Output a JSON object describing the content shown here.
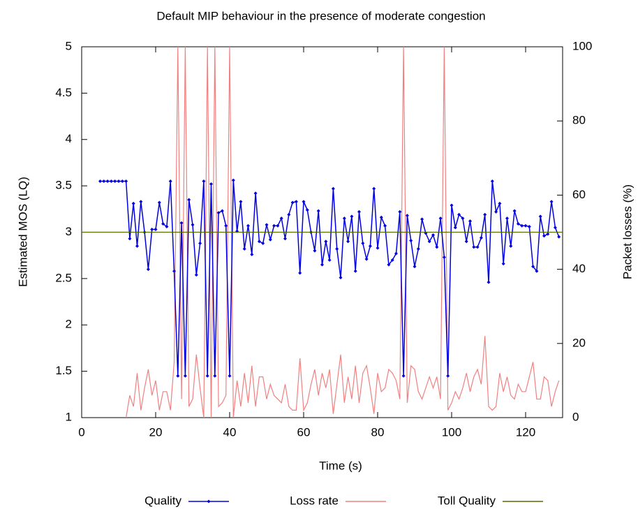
{
  "chart_data": {
    "type": "line",
    "title": "Default MIP behaviour in the presence of moderate congestion",
    "x_label": "Time (s)",
    "y_label": "Estimated MOS (LQ)",
    "y2_label": "Packet losses (%)",
    "xlim": [
      0,
      130
    ],
    "xticks": [
      0,
      20,
      40,
      60,
      80,
      100,
      120
    ],
    "ylim": [
      1,
      5
    ],
    "yticks": [
      1,
      1.5,
      2,
      2.5,
      3,
      3.5,
      4,
      4.5,
      5
    ],
    "y2lim": [
      0,
      100
    ],
    "y2ticks": [
      0,
      20,
      40,
      60,
      80,
      100
    ],
    "legend": "bottom",
    "series": [
      {
        "name": "Quality",
        "color": "#0000e0",
        "marker": "diamond",
        "x": [
          5,
          6,
          7,
          8,
          9,
          10,
          11,
          12,
          13,
          14,
          15,
          16,
          17,
          18,
          19,
          20,
          21,
          22,
          23,
          24,
          25,
          26,
          27,
          28,
          29,
          30,
          31,
          32,
          33,
          34,
          35,
          36,
          37,
          38,
          39,
          40,
          41,
          42,
          43,
          44,
          45,
          46,
          47,
          48,
          49,
          50,
          51,
          52,
          53,
          54,
          55,
          56,
          57,
          58,
          59,
          60,
          61,
          62,
          63,
          64,
          65,
          66,
          67,
          68,
          69,
          70,
          71,
          72,
          73,
          74,
          75,
          76,
          77,
          78,
          79,
          80,
          81,
          82,
          83,
          84,
          85,
          86,
          87,
          88,
          89,
          90,
          91,
          92,
          93,
          94,
          95,
          96,
          97,
          98,
          99,
          100,
          101,
          102,
          103,
          104,
          105,
          106,
          107,
          108,
          109,
          110,
          111,
          112,
          113,
          114,
          115,
          116,
          117,
          118,
          119,
          120,
          121,
          122,
          123,
          124,
          125,
          126,
          127,
          128,
          129
        ],
        "values": [
          3.55,
          3.55,
          3.55,
          3.55,
          3.55,
          3.55,
          3.55,
          3.55,
          2.93,
          3.31,
          2.85,
          3.33,
          3.0,
          2.6,
          3.03,
          3.03,
          3.32,
          3.09,
          3.06,
          3.55,
          2.58,
          1.45,
          3.1,
          1.45,
          3.35,
          3.08,
          2.54,
          2.88,
          3.55,
          1.45,
          3.52,
          1.45,
          3.21,
          3.23,
          3.07,
          1.45,
          3.56,
          3.01,
          3.33,
          2.82,
          3.07,
          2.76,
          3.42,
          2.9,
          2.88,
          3.08,
          2.92,
          3.07,
          3.07,
          3.15,
          2.93,
          3.19,
          3.32,
          3.33,
          2.56,
          3.33,
          3.24,
          3.0,
          2.8,
          3.23,
          2.65,
          2.9,
          2.7,
          3.47,
          2.82,
          2.51,
          3.15,
          2.9,
          3.17,
          2.58,
          3.22,
          2.88,
          2.71,
          2.85,
          3.47,
          2.83,
          3.16,
          3.07,
          2.65,
          2.7,
          2.77,
          3.22,
          1.45,
          3.18,
          2.91,
          2.63,
          2.82,
          3.14,
          2.99,
          2.9,
          2.97,
          2.84,
          3.15,
          2.73,
          1.45,
          3.29,
          3.05,
          3.19,
          3.15,
          2.9,
          3.12,
          2.84,
          2.84,
          2.94,
          3.19,
          2.46,
          3.55,
          3.22,
          3.31,
          2.66,
          3.15,
          2.85,
          3.23,
          3.09,
          3.07,
          3.07,
          3.06,
          2.63,
          2.58,
          3.17,
          2.96,
          2.98,
          3.33,
          3.05,
          2.95
        ]
      },
      {
        "name": "Loss rate",
        "color": "#f08080",
        "axis": "y2",
        "x": [
          12,
          13,
          14,
          15,
          16,
          17,
          18,
          19,
          20,
          21,
          22,
          23,
          24,
          25,
          26,
          27,
          28,
          29,
          30,
          31,
          32,
          33,
          34,
          35,
          36,
          37,
          38,
          39,
          40,
          41,
          42,
          43,
          44,
          45,
          46,
          47,
          48,
          49,
          50,
          51,
          52,
          53,
          54,
          55,
          56,
          57,
          58,
          59,
          60,
          61,
          62,
          63,
          64,
          65,
          66,
          67,
          68,
          69,
          70,
          71,
          72,
          73,
          74,
          75,
          76,
          77,
          78,
          79,
          80,
          81,
          82,
          83,
          84,
          85,
          86,
          87,
          88,
          89,
          90,
          91,
          92,
          93,
          94,
          95,
          96,
          97,
          98,
          99,
          100,
          101,
          102,
          103,
          104,
          105,
          106,
          107,
          108,
          109,
          110,
          111,
          112,
          113,
          114,
          115,
          116,
          117,
          118,
          119,
          120,
          121,
          122,
          123,
          124,
          125,
          126,
          127,
          128,
          129
        ],
        "values": [
          0,
          6,
          3,
          12,
          2,
          8,
          13,
          6,
          10,
          2,
          7,
          7,
          2,
          15,
          100,
          5,
          100,
          3,
          5,
          17,
          8,
          0,
          100,
          0,
          100,
          3,
          4,
          6,
          100,
          0,
          10,
          3,
          12,
          4,
          14,
          3,
          11,
          11,
          5,
          9,
          6,
          5,
          4,
          9,
          3,
          2,
          2,
          16,
          2,
          4,
          9,
          13,
          6,
          12,
          8,
          13,
          1,
          9,
          17,
          4,
          11,
          5,
          14,
          4,
          12,
          14,
          8,
          1,
          12,
          7,
          8,
          13,
          12,
          10,
          5,
          100,
          4,
          14,
          13,
          7,
          5,
          8,
          11,
          8,
          11,
          5,
          100,
          2,
          4,
          7,
          5,
          8,
          12,
          7,
          11,
          13,
          9,
          22,
          3,
          2,
          3,
          12,
          7,
          11,
          6,
          5,
          9,
          7,
          7,
          11,
          15,
          5,
          5,
          11,
          10,
          3,
          7,
          10
        ]
      },
      {
        "name": "Toll Quality",
        "color": "#556b00",
        "x": [
          0,
          130
        ],
        "values": [
          3,
          3
        ]
      }
    ]
  }
}
